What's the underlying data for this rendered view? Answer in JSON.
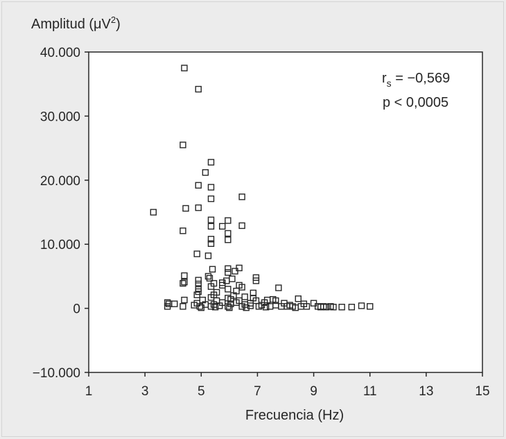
{
  "chart_data": {
    "type": "scatter",
    "ylabel": "Amplitud (μV²)",
    "ylabel_parts": {
      "main": "Amplitud (μV",
      "sup": "2",
      "close": ")"
    },
    "xlabel": "Frecuencia (Hz)",
    "xlim": [
      1,
      15
    ],
    "ylim": [
      -10000,
      40000
    ],
    "x_ticks": [
      1,
      3,
      5,
      7,
      9,
      11,
      13,
      15
    ],
    "y_ticks": [
      -10000,
      0,
      10000,
      20000,
      30000,
      40000
    ],
    "x_tick_labels": [
      "1",
      "3",
      "5",
      "7",
      "9",
      "11",
      "13",
      "15"
    ],
    "y_tick_labels": [
      "−10.000",
      "0",
      "10.000",
      "20.000",
      "30.000",
      "40.000"
    ],
    "annotation": {
      "rs_label": "r",
      "rs_sub": "s",
      "rs_value": " = −0,569",
      "p_text": "p < 0,0005"
    },
    "marker": "open-square",
    "colors": {
      "background": "#ececec",
      "plot_area": "#ffffff",
      "ink": "#262626"
    },
    "points": [
      [
        4.4,
        37500
      ],
      [
        4.9,
        34200
      ],
      [
        4.35,
        25500
      ],
      [
        5.35,
        22800
      ],
      [
        5.15,
        21200
      ],
      [
        4.9,
        19200
      ],
      [
        5.35,
        18900
      ],
      [
        5.35,
        17100
      ],
      [
        6.45,
        17400
      ],
      [
        3.3,
        15000
      ],
      [
        4.45,
        15600
      ],
      [
        4.9,
        15700
      ],
      [
        5.95,
        13700
      ],
      [
        5.35,
        13800
      ],
      [
        5.75,
        12800
      ],
      [
        6.45,
        12900
      ],
      [
        4.35,
        12100
      ],
      [
        5.35,
        12800
      ],
      [
        5.95,
        11700
      ],
      [
        5.35,
        10800
      ],
      [
        5.95,
        10700
      ],
      [
        5.35,
        10100
      ],
      [
        4.85,
        8500
      ],
      [
        5.25,
        8200
      ],
      [
        6.35,
        6300
      ],
      [
        5.95,
        6200
      ],
      [
        5.4,
        6100
      ],
      [
        6.2,
        5800
      ],
      [
        5.95,
        5600
      ],
      [
        4.4,
        5100
      ],
      [
        5.25,
        5000
      ],
      [
        6.95,
        4800
      ],
      [
        5.3,
        4700
      ],
      [
        6.1,
        4600
      ],
      [
        4.9,
        4400
      ],
      [
        5.9,
        4300
      ],
      [
        6.95,
        4300
      ],
      [
        4.4,
        4100
      ],
      [
        4.35,
        3900
      ],
      [
        5.75,
        4000
      ],
      [
        5.45,
        3900
      ],
      [
        4.9,
        3800
      ],
      [
        5.75,
        3600
      ],
      [
        6.35,
        3600
      ],
      [
        5.35,
        3400
      ],
      [
        6.45,
        3300
      ],
      [
        7.75,
        3200
      ],
      [
        4.9,
        3100
      ],
      [
        5.95,
        3000
      ],
      [
        6.25,
        2700
      ],
      [
        4.9,
        2600
      ],
      [
        5.55,
        2500
      ],
      [
        6.85,
        2400
      ],
      [
        4.85,
        2100
      ],
      [
        5.45,
        2100
      ],
      [
        6.15,
        2000
      ],
      [
        6.55,
        1800
      ],
      [
        5.35,
        1700
      ],
      [
        5.95,
        1600
      ],
      [
        6.85,
        1600
      ],
      [
        8.45,
        1500
      ],
      [
        6.05,
        1400
      ],
      [
        7.55,
        1400
      ],
      [
        5.05,
        1300
      ],
      [
        4.4,
        1300
      ],
      [
        5.55,
        1200
      ],
      [
        6.35,
        1200
      ],
      [
        6.95,
        1200
      ],
      [
        7.35,
        1300
      ],
      [
        7.65,
        1200
      ],
      [
        3.8,
        900
      ],
      [
        3.85,
        700
      ],
      [
        4.05,
        700
      ],
      [
        4.85,
        800
      ],
      [
        5.75,
        900
      ],
      [
        6.25,
        900
      ],
      [
        6.75,
        800
      ],
      [
        7.25,
        900
      ],
      [
        7.95,
        800
      ],
      [
        8.65,
        700
      ],
      [
        9.0,
        800
      ],
      [
        3.8,
        300
      ],
      [
        4.35,
        300
      ],
      [
        4.95,
        300
      ],
      [
        5.35,
        300
      ],
      [
        5.65,
        400
      ],
      [
        5.95,
        300
      ],
      [
        6.45,
        300
      ],
      [
        6.75,
        400
      ],
      [
        7.05,
        300
      ],
      [
        7.45,
        300
      ],
      [
        7.85,
        300
      ],
      [
        8.05,
        300
      ],
      [
        8.25,
        300
      ],
      [
        8.75,
        300
      ],
      [
        9.25,
        200
      ],
      [
        9.45,
        200
      ],
      [
        9.7,
        200
      ],
      [
        10.0,
        200
      ],
      [
        10.35,
        200
      ],
      [
        10.7,
        400
      ],
      [
        11.0,
        300
      ],
      [
        4.75,
        500
      ],
      [
        5.15,
        600
      ],
      [
        5.45,
        600
      ],
      [
        6.05,
        700
      ],
      [
        6.55,
        600
      ],
      [
        7.15,
        500
      ],
      [
        7.65,
        500
      ],
      [
        8.15,
        500
      ],
      [
        8.55,
        300
      ],
      [
        9.15,
        300
      ],
      [
        9.6,
        300
      ],
      [
        5.0,
        100
      ],
      [
        5.5,
        200
      ],
      [
        6.0,
        100
      ],
      [
        6.6,
        100
      ],
      [
        7.3,
        200
      ],
      [
        8.35,
        100
      ],
      [
        9.35,
        300
      ]
    ]
  }
}
